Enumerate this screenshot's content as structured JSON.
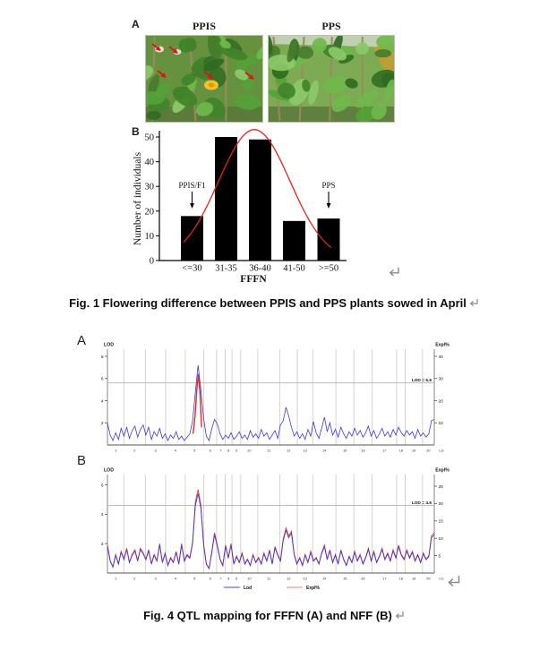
{
  "figure1": {
    "panel_a_label": "A",
    "panel_b_label": "B",
    "photos": [
      {
        "title": "PPIS",
        "arrow_count": 5,
        "arrow_color": "#dd1515"
      },
      {
        "title": "PPS",
        "arrow_count": 0,
        "arrow_color": ""
      }
    ],
    "caption": "Fig. 1 Flowering difference between PPIS and PPS plants sowed in April"
  },
  "figure4": {
    "panel_a_label": "A",
    "panel_b_label": "B",
    "caption": "Fig. 4 QTL mapping for FFFN (A) and NFF (B)",
    "legend": [
      {
        "label": "Lod",
        "color": "#4646d8"
      },
      {
        "label": "Expl%",
        "color": "#f08080"
      }
    ]
  },
  "chart_data": [
    {
      "type": "bar",
      "title": "",
      "categories": [
        "<=30",
        "31-35",
        "36-40",
        "41-50",
        ">=50"
      ],
      "values": [
        18,
        50,
        49,
        16,
        17
      ],
      "xlabel": "FFFN",
      "ylabel": "Number of individuals",
      "yticks": [
        0,
        10,
        20,
        30,
        40,
        50
      ],
      "ylim": [
        0,
        50
      ],
      "bar_color": "#000000",
      "annotations": [
        {
          "label": "PPIS/F1",
          "category": "<=30",
          "arrow": "down"
        },
        {
          "label": "PPS",
          "category": ">=50",
          "arrow": "down"
        }
      ],
      "fit_curve": {
        "shape": "normal",
        "color": "#e0251c",
        "peak_value": 53,
        "center_frac": 0.507,
        "sigma_frac": 0.191,
        "x_start_frac": 0.129,
        "x_end_frac": 0.928
      }
    },
    {
      "type": "line",
      "panel": "A",
      "trait": "FFFN",
      "left_axis_label": "LOD",
      "right_axis_label": "Expl%",
      "left_ticks": [
        2,
        4,
        6,
        8
      ],
      "right_ticks": [
        10,
        20,
        30,
        40
      ],
      "threshold_lod": 5.6,
      "threshold_label": "LOD = 5.6",
      "line_color": "#3a3ad0",
      "secondary_color": "#d83030",
      "x_group_labels": [
        "1",
        "2",
        "3",
        "4",
        "5",
        "6",
        "7",
        "8",
        "9",
        "10",
        "11",
        "12",
        "13",
        "14",
        "15",
        "16",
        "17",
        "18",
        "19",
        "20"
      ],
      "x_end_label": "LG",
      "group_boundaries_frac": [
        0,
        0.05,
        0.116,
        0.178,
        0.238,
        0.295,
        0.334,
        0.36,
        0.381,
        0.408,
        0.46,
        0.527,
        0.581,
        0.628,
        0.699,
        0.754,
        0.81,
        0.885,
        0.911,
        0.964,
        1.0
      ],
      "lod_samples": [
        2.0,
        0.9,
        0.4,
        1.1,
        0.5,
        1.5,
        0.8,
        1.6,
        0.6,
        1.3,
        1.7,
        0.7,
        1.4,
        1.8,
        0.9,
        1.6,
        0.5,
        1.2,
        0.8,
        1.5,
        0.6,
        1.0,
        0.4,
        0.9,
        0.6,
        1.2,
        0.5,
        0.8,
        0.4,
        0.7,
        1.0,
        2.2,
        4.8,
        7.2,
        5.0,
        2.4,
        0.8,
        0.4,
        1.5,
        2.3,
        1.9,
        1.0,
        0.5,
        0.9,
        0.6,
        1.1,
        0.5,
        0.8,
        1.2,
        0.6,
        0.9,
        0.5,
        1.3,
        0.7,
        1.0,
        0.6,
        1.4,
        0.8,
        1.1,
        0.5,
        0.9,
        1.3,
        0.6,
        1.8,
        2.2,
        3.4,
        2.6,
        1.6,
        0.8,
        1.2,
        0.6,
        1.0,
        0.5,
        1.4,
        0.8,
        2.1,
        1.1,
        0.6,
        1.5,
        2.5,
        1.2,
        2.0,
        0.9,
        1.4,
        0.7,
        1.6,
        1.0,
        0.6,
        1.2,
        0.8,
        1.5,
        0.9,
        1.3,
        0.7,
        1.1,
        1.7,
        0.8,
        1.3,
        0.6,
        1.0,
        1.5,
        0.8,
        1.2,
        0.7,
        1.4,
        0.9,
        1.6,
        1.1,
        0.8,
        1.3,
        0.9,
        1.2,
        0.6,
        1.4,
        0.8,
        1.1,
        0.7,
        1.0,
        2.2,
        2.3
      ],
      "expl_overlay_lodscale": [
        [
          0.262,
          1.0
        ],
        [
          0.268,
          2.6
        ],
        [
          0.274,
          5.2
        ],
        [
          0.278,
          6.4
        ],
        [
          0.283,
          4.8
        ],
        [
          0.288,
          1.6
        ]
      ]
    },
    {
      "type": "line",
      "panel": "B",
      "trait": "NFF",
      "left_axis_label": "LOD",
      "right_axis_label": "Expl%",
      "left_ticks": [
        2,
        4,
        6
      ],
      "right_ticks": [
        5,
        10,
        15,
        20,
        25
      ],
      "threshold_lod": 4.6,
      "threshold_label": "LOD = 4.6",
      "line_color": "#3a3ad0",
      "secondary_color": "#e04040",
      "expl_ratio": 4.45,
      "x_group_labels": [
        "1",
        "2",
        "3",
        "4",
        "5",
        "6",
        "7",
        "8",
        "9",
        "10",
        "11",
        "12",
        "13",
        "14",
        "15",
        "16",
        "17",
        "18",
        "19",
        "20"
      ],
      "x_end_label": "LG",
      "group_boundaries_frac": [
        0,
        0.05,
        0.116,
        0.178,
        0.238,
        0.295,
        0.334,
        0.36,
        0.381,
        0.408,
        0.46,
        0.527,
        0.581,
        0.628,
        0.699,
        0.754,
        0.81,
        0.885,
        0.911,
        0.964,
        1.0
      ],
      "lod_samples": [
        1.8,
        0.8,
        0.4,
        1.2,
        0.6,
        1.4,
        0.9,
        1.6,
        0.7,
        1.2,
        1.5,
        0.8,
        1.6,
        1.3,
        0.9,
        1.5,
        0.6,
        1.2,
        0.8,
        1.9,
        0.7,
        1.3,
        0.5,
        1.0,
        0.7,
        1.4,
        0.6,
        1.9,
        0.8,
        1.2,
        1.0,
        2.0,
        4.6,
        5.4,
        4.4,
        1.9,
        0.6,
        0.3,
        1.4,
        2.6,
        1.8,
        0.9,
        0.5,
        1.8,
        1.0,
        1.9,
        0.6,
        1.1,
        0.7,
        1.3,
        0.6,
        0.9,
        0.5,
        1.2,
        0.7,
        1.0,
        0.6,
        1.3,
        0.8,
        1.5,
        0.6,
        1.7,
        1.2,
        0.8,
        2.2,
        2.9,
        2.4,
        2.7,
        1.2,
        0.6,
        1.0,
        0.5,
        1.2,
        0.7,
        1.4,
        0.8,
        1.0,
        0.6,
        1.3,
        1.8,
        0.9,
        1.5,
        0.7,
        1.2,
        0.6,
        1.5,
        0.9,
        0.5,
        1.1,
        0.7,
        1.4,
        0.8,
        1.2,
        0.6,
        1.0,
        1.6,
        0.8,
        1.4,
        0.7,
        1.1,
        1.6,
        0.9,
        1.3,
        0.8,
        1.5,
        1.0,
        1.8,
        1.2,
        0.9,
        1.5,
        1.0,
        1.4,
        0.8,
        1.2,
        0.7,
        1.3,
        0.9,
        1.1,
        2.4,
        2.6
      ]
    }
  ]
}
